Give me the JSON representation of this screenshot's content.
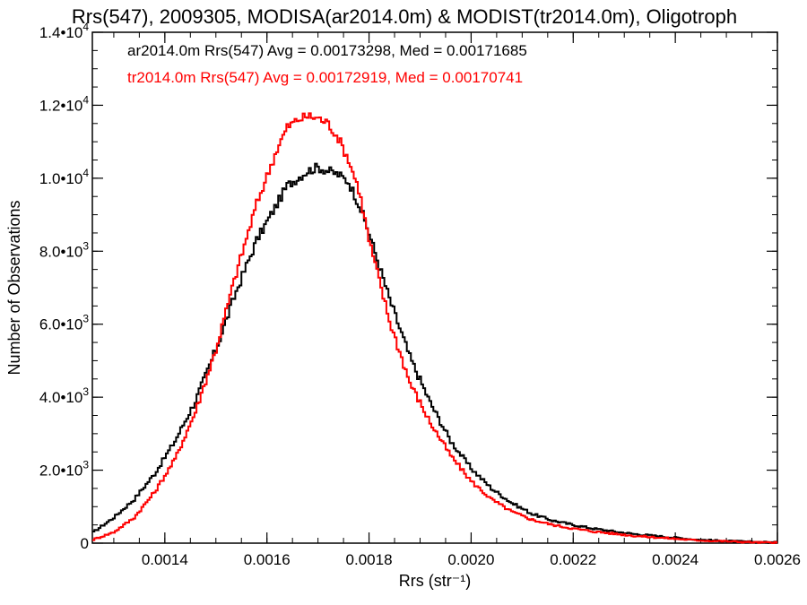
{
  "chart_data": {
    "type": "line",
    "title": "Rrs(547), 2009305, MODISA(ar2014.0m) & MODIST(tr2014.0m), Oligotroph",
    "xlabel": "Rrs (str⁻¹)",
    "ylabel": "Number of Observations",
    "xlim": [
      0.001258,
      0.0026
    ],
    "ylim": [
      0,
      14000
    ],
    "x_ticks": [
      0.0014,
      0.0016,
      0.0018,
      0.002,
      0.0022,
      0.0024,
      0.0026
    ],
    "x_tick_labels": [
      "0.0014",
      "0.0016",
      "0.0018",
      "0.0020",
      "0.0022",
      "0.0024",
      "0.0026"
    ],
    "y_ticks": [
      0,
      2000,
      4000,
      6000,
      8000,
      10000,
      12000,
      14000
    ],
    "y_tick_labels": [
      {
        "mantissa": "0",
        "exp": ""
      },
      {
        "mantissa": "2.0•10",
        "exp": "3"
      },
      {
        "mantissa": "4.0•10",
        "exp": "3"
      },
      {
        "mantissa": "6.0•10",
        "exp": "3"
      },
      {
        "mantissa": "8.0•10",
        "exp": "3"
      },
      {
        "mantissa": "1.0•10",
        "exp": "4"
      },
      {
        "mantissa": "1.2•10",
        "exp": "4"
      },
      {
        "mantissa": "1.4•10",
        "exp": "4"
      }
    ],
    "grid": false,
    "step": true,
    "annotations": [
      {
        "text": "ar2014.0m Rrs(547) Avg = 0.00173298, Med = 0.00171685",
        "color": "#000000"
      },
      {
        "text": "tr2014.0m Rrs(547) Avg = 0.00172919, Med = 0.00170741",
        "color": "#ff0000"
      }
    ],
    "series": [
      {
        "color": "#000000",
        "x": [
          0.00126,
          0.0013,
          0.00134,
          0.00138,
          0.00142,
          0.00146,
          0.0015,
          0.00154,
          0.00158,
          0.00162,
          0.00164,
          0.00166,
          0.00168,
          0.0017,
          0.00172,
          0.00174,
          0.00176,
          0.00178,
          0.0018,
          0.00184,
          0.00188,
          0.00192,
          0.00196,
          0.002,
          0.00204,
          0.00208,
          0.00212,
          0.00216,
          0.0022,
          0.00224,
          0.00228,
          0.00232,
          0.00236,
          0.0024,
          0.00244,
          0.00248,
          0.00252,
          0.00256,
          0.0026
        ],
        "y": [
          300,
          700,
          1200,
          1900,
          2800,
          3900,
          5300,
          6900,
          8300,
          9300,
          9800,
          10000,
          10200,
          10300,
          10200,
          10100,
          9900,
          9300,
          8500,
          6700,
          5100,
          3850,
          2800,
          2050,
          1500,
          1100,
          800,
          620,
          500,
          400,
          320,
          250,
          200,
          150,
          100,
          70,
          50,
          30,
          20
        ]
      },
      {
        "color": "#ff0000",
        "x": [
          0.00126,
          0.0013,
          0.00134,
          0.00138,
          0.00142,
          0.00146,
          0.0015,
          0.00154,
          0.00158,
          0.00162,
          0.00164,
          0.00166,
          0.00168,
          0.0017,
          0.00172,
          0.00174,
          0.00176,
          0.00178,
          0.0018,
          0.00184,
          0.00188,
          0.00192,
          0.00196,
          0.002,
          0.00204,
          0.00208,
          0.00212,
          0.00216,
          0.0022,
          0.00224,
          0.00228,
          0.00232,
          0.00236,
          0.0024,
          0.00244,
          0.00248,
          0.00252,
          0.00256,
          0.0026
        ],
        "y": [
          100,
          300,
          700,
          1400,
          2300,
          3600,
          5300,
          7400,
          9300,
          10800,
          11400,
          11600,
          11700,
          11650,
          11500,
          11100,
          10500,
          9700,
          8300,
          6100,
          4400,
          3300,
          2400,
          1700,
          1200,
          860,
          640,
          500,
          400,
          320,
          260,
          200,
          160,
          120,
          80,
          60,
          40,
          20,
          10
        ]
      }
    ]
  }
}
